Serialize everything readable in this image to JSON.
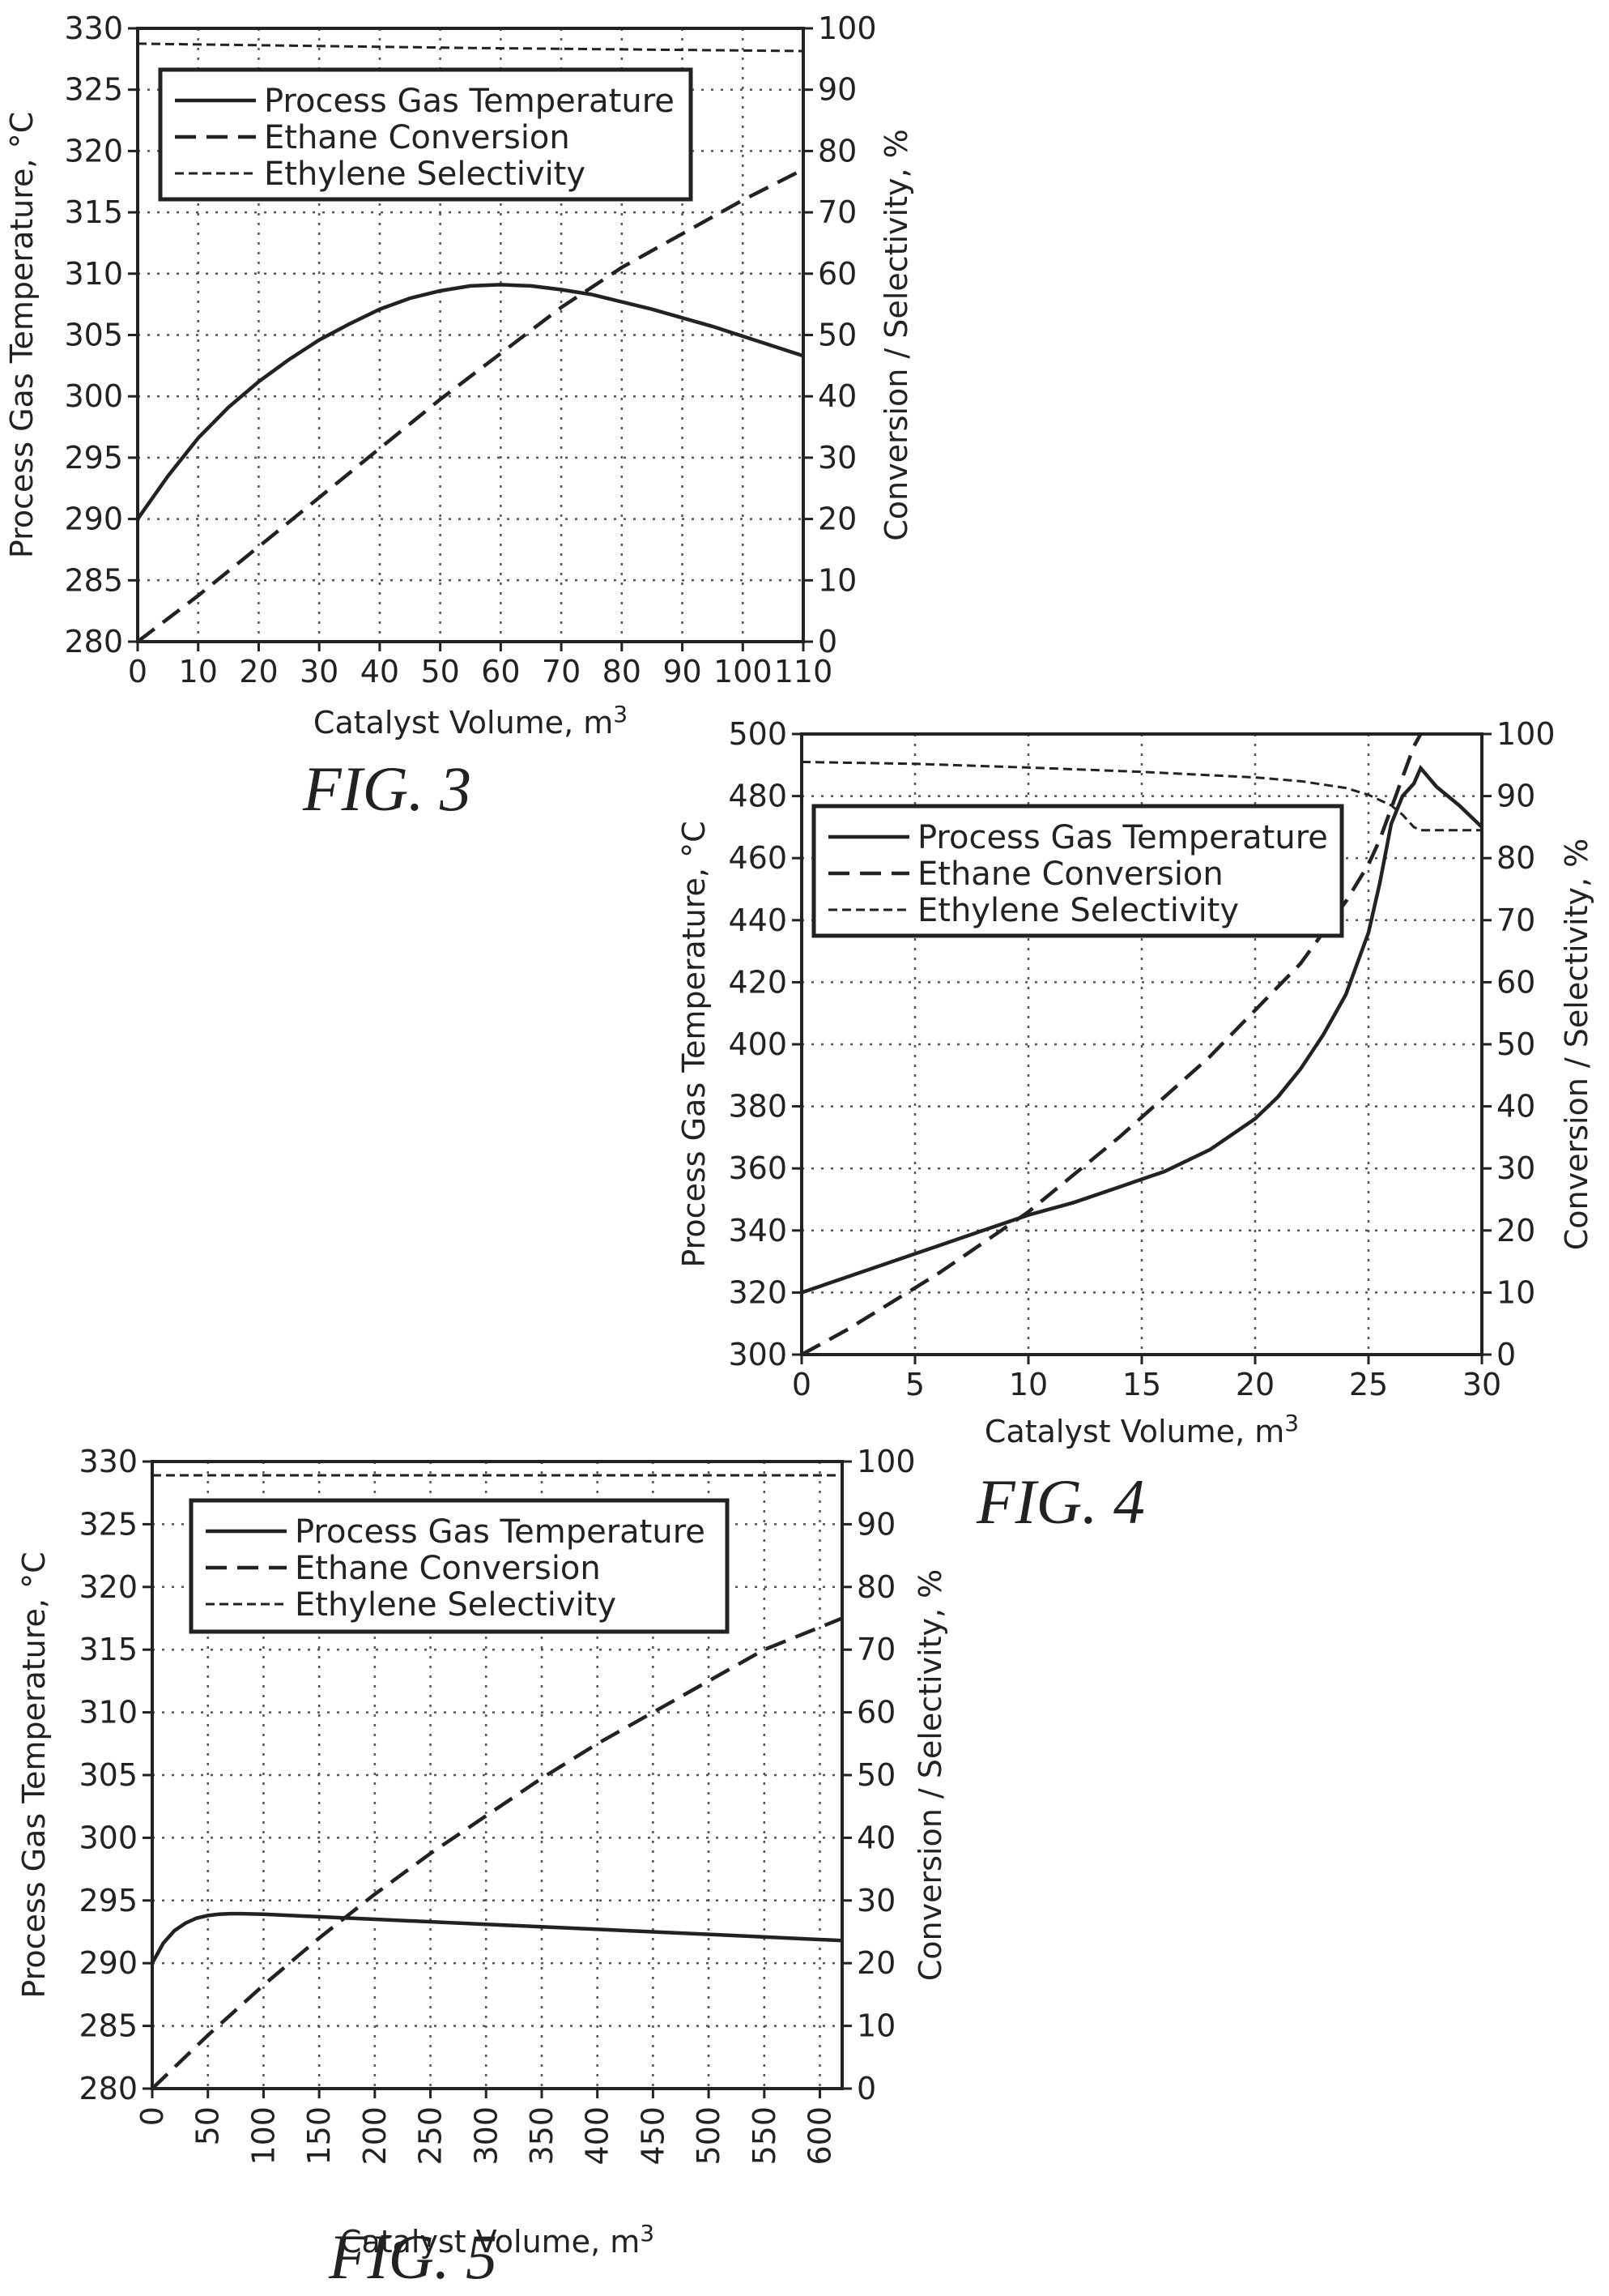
{
  "chart_data": [
    {
      "id": "fig3",
      "type": "line",
      "caption": "FIG. 3",
      "xlabel": "Catalyst Volume, m",
      "xlabel_sup": "3",
      "ylabel": "Process Gas Temperature, °C",
      "y2label": "Conversion / Selectivity, %",
      "xlim": [
        0,
        110
      ],
      "ylim": [
        280,
        330
      ],
      "y2lim": [
        0,
        100
      ],
      "xticks": [
        0,
        10,
        20,
        30,
        40,
        50,
        60,
        70,
        80,
        90,
        100,
        110
      ],
      "yticks": [
        280,
        285,
        290,
        295,
        300,
        305,
        310,
        315,
        320,
        325,
        330
      ],
      "y2ticks": [
        0,
        10,
        20,
        30,
        40,
        50,
        60,
        70,
        80,
        90,
        100
      ],
      "xtick_rotation": 0,
      "grid": true,
      "legend_position": "top-left",
      "series": [
        {
          "name": "Process Gas Temperature",
          "axis": "left",
          "style": "solid",
          "x": [
            0,
            5,
            10,
            15,
            20,
            25,
            30,
            35,
            40,
            45,
            50,
            55,
            60,
            65,
            70,
            75,
            80,
            85,
            90,
            95,
            100,
            105,
            110
          ],
          "y": [
            290.0,
            293.5,
            296.6,
            299.1,
            301.2,
            303.0,
            304.6,
            305.9,
            307.1,
            308.0,
            308.6,
            309.0,
            309.1,
            309.0,
            308.7,
            308.3,
            307.7,
            307.1,
            306.4,
            305.7,
            304.9,
            304.1,
            303.3
          ]
        },
        {
          "name": "Ethane Conversion",
          "axis": "right",
          "style": "dashed",
          "x": [
            0,
            10,
            20,
            30,
            40,
            50,
            60,
            70,
            80,
            90,
            100,
            110
          ],
          "y": [
            0,
            7.5,
            15.5,
            23.5,
            31.5,
            39.5,
            47.0,
            54.5,
            61.0,
            66.5,
            72.0,
            77.0
          ]
        },
        {
          "name": "Ethylene Selectivity",
          "axis": "right",
          "style": "dash-dot",
          "x": [
            0,
            55,
            110
          ],
          "y": [
            97.5,
            96.8,
            96.3
          ]
        }
      ]
    },
    {
      "id": "fig4",
      "type": "line",
      "caption": "FIG. 4",
      "xlabel": "Catalyst Volume, m",
      "xlabel_sup": "3",
      "ylabel": "Process Gas Temperature, °C",
      "y2label": "Conversion / Selectivity, %",
      "xlim": [
        0,
        30
      ],
      "ylim": [
        300,
        500
      ],
      "y2lim": [
        0,
        100
      ],
      "xticks": [
        0,
        5,
        10,
        15,
        20,
        25,
        30
      ],
      "yticks": [
        300,
        320,
        340,
        360,
        380,
        400,
        420,
        440,
        460,
        480,
        500
      ],
      "y2ticks": [
        0,
        10,
        20,
        30,
        40,
        50,
        60,
        70,
        80,
        90,
        100
      ],
      "xtick_rotation": 0,
      "grid": true,
      "legend_position": "top-left",
      "series": [
        {
          "name": "Process Gas Temperature",
          "axis": "left",
          "style": "solid",
          "x": [
            0,
            2,
            4,
            6,
            8,
            10,
            12,
            14,
            16,
            18,
            20,
            21,
            22,
            23,
            24,
            25,
            25.5,
            26,
            26.5,
            27,
            27.3,
            28,
            29,
            30
          ],
          "y": [
            320,
            325,
            330,
            335,
            340,
            345,
            349,
            354,
            359,
            366,
            376,
            383,
            392,
            403,
            416,
            436,
            452,
            471,
            480,
            484,
            489,
            483,
            477,
            470
          ]
        },
        {
          "name": "Ethane Conversion",
          "axis": "right",
          "style": "dashed",
          "x": [
            0,
            2,
            4,
            6,
            8,
            10,
            12,
            14,
            16,
            18,
            20,
            22,
            23,
            24,
            25,
            25.5,
            26,
            26.5,
            27,
            27.3
          ],
          "y": [
            0,
            4,
            8.5,
            13,
            18,
            23,
            29,
            35,
            41.5,
            48,
            55.5,
            63,
            68,
            73,
            79,
            83,
            88,
            93,
            98,
            100
          ]
        },
        {
          "name": "Ethylene Selectivity",
          "axis": "right",
          "style": "dash-dot",
          "x": [
            0,
            5,
            10,
            15,
            20,
            22,
            24,
            25,
            26,
            26.5,
            27,
            27.3,
            28,
            30
          ],
          "y": [
            95.5,
            95.2,
            94.6,
            93.9,
            93.0,
            92.4,
            91.3,
            90.2,
            88.5,
            87.0,
            85.0,
            84.5,
            84.5,
            84.5
          ]
        }
      ]
    },
    {
      "id": "fig5",
      "type": "line",
      "caption": "FIG. 5",
      "xlabel": "Catalyst Volume, m",
      "xlabel_sup": "3",
      "ylabel": "Process Gas Temperature, °C",
      "y2label": "Conversion / Selectivity, %",
      "xlim": [
        0,
        620
      ],
      "ylim": [
        280,
        330
      ],
      "y2lim": [
        0,
        100
      ],
      "xticks": [
        0,
        50,
        100,
        150,
        200,
        250,
        300,
        350,
        400,
        450,
        500,
        550,
        600
      ],
      "yticks": [
        280,
        285,
        290,
        295,
        300,
        305,
        310,
        315,
        320,
        325,
        330
      ],
      "y2ticks": [
        0,
        10,
        20,
        30,
        40,
        50,
        60,
        70,
        80,
        90,
        100
      ],
      "xtick_rotation": -90,
      "grid": true,
      "legend_position": "top-left",
      "series": [
        {
          "name": "Process Gas Temperature",
          "axis": "left",
          "style": "solid",
          "x": [
            0,
            10,
            20,
            30,
            40,
            50,
            60,
            70,
            80,
            100,
            150,
            200,
            300,
            400,
            500,
            620
          ],
          "y": [
            290.0,
            291.6,
            292.6,
            293.2,
            293.6,
            293.8,
            293.9,
            293.95,
            293.95,
            293.9,
            293.7,
            293.5,
            293.1,
            292.7,
            292.3,
            291.8
          ]
        },
        {
          "name": "Ethane Conversion",
          "axis": "right",
          "style": "dashed",
          "x": [
            0,
            50,
            100,
            150,
            200,
            250,
            300,
            350,
            400,
            450,
            500,
            550,
            620
          ],
          "y": [
            0,
            8.5,
            16.5,
            24,
            31,
            37.5,
            43.5,
            49.5,
            55,
            60,
            65,
            70,
            75
          ]
        },
        {
          "name": "Ethylene Selectivity",
          "axis": "right",
          "style": "dash-dot",
          "x": [
            0,
            620
          ],
          "y": [
            97.8,
            97.8
          ]
        }
      ]
    }
  ]
}
